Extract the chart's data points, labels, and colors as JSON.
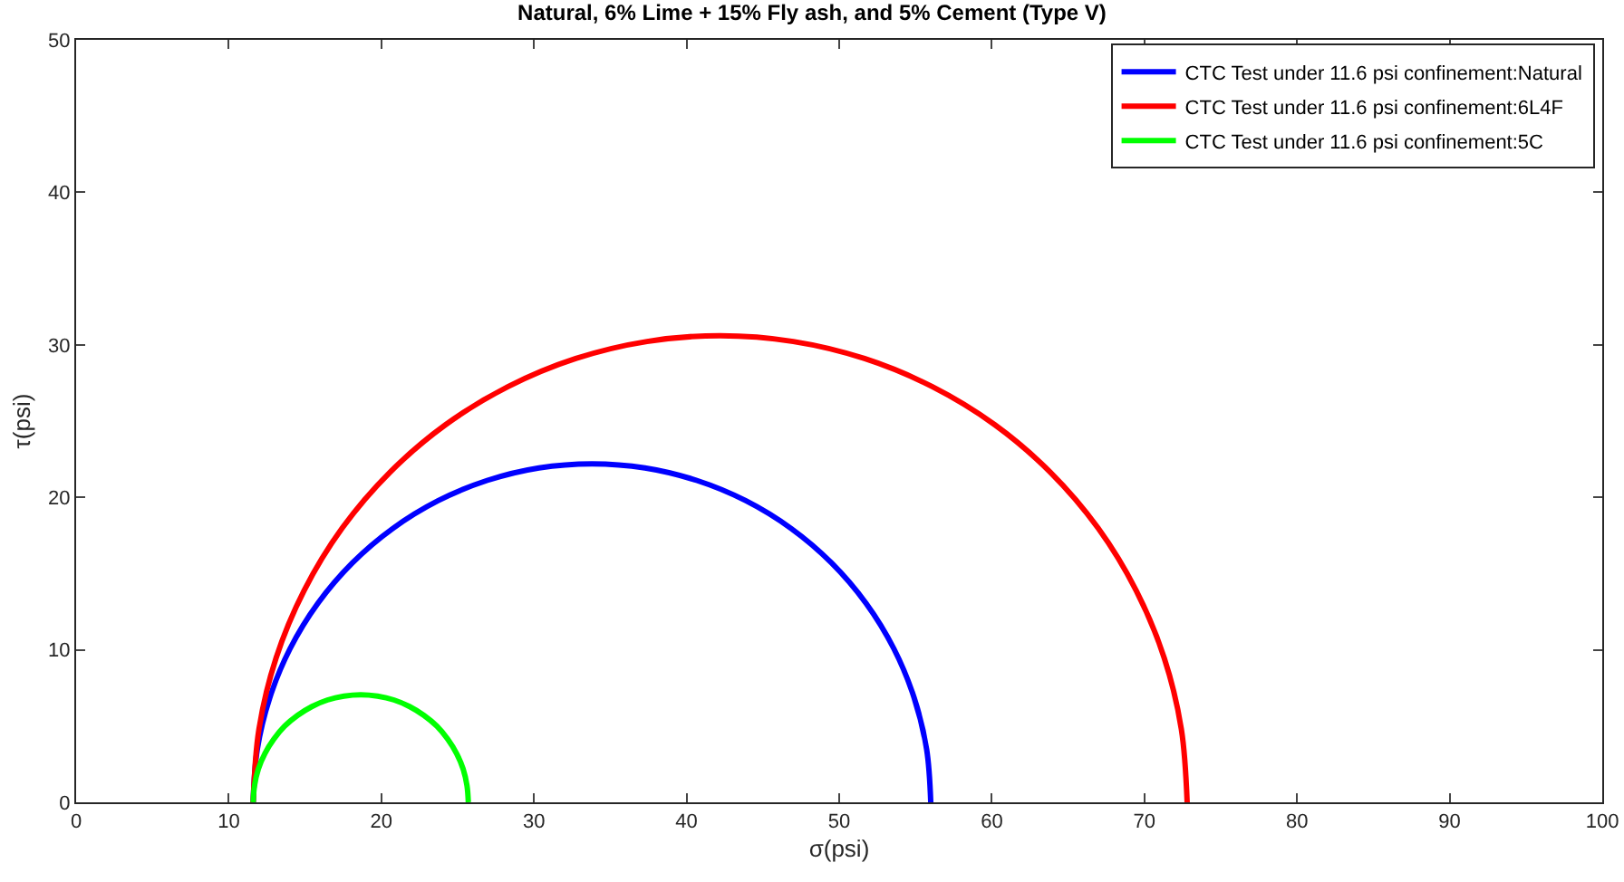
{
  "chart_data": {
    "type": "line",
    "title": "Natural, 6% Lime + 15% Fly ash, and 5% Cement (Type V)",
    "xlabel": "σ(psi)",
    "ylabel": "τ(psi)",
    "xlim": [
      0,
      100
    ],
    "xticks": [
      0,
      10,
      20,
      30,
      40,
      50,
      60,
      70,
      80,
      90,
      100
    ],
    "ylim": [
      0,
      50
    ],
    "yticks": [
      0,
      10,
      20,
      30,
      40,
      50
    ],
    "grid": false,
    "legend": "top right",
    "marker": "none",
    "line_style": "solid",
    "series": [
      {
        "name": "CTC Test under 11.6 psi confinement:Natural",
        "color": "#0000ff",
        "x": [
          11.6,
          11.87,
          12.69,
          14.02,
          15.84,
          18.1,
          20.75,
          23.72,
          26.94,
          30.33,
          33.8,
          37.27,
          40.66,
          43.88,
          46.85,
          49.5,
          51.76,
          53.58,
          54.91,
          55.73,
          56.0
        ],
        "values": [
          0,
          3.47,
          6.86,
          10.08,
          13.05,
          15.7,
          17.96,
          19.78,
          21.11,
          21.93,
          22.2,
          21.93,
          21.11,
          19.78,
          17.96,
          15.7,
          13.05,
          10.08,
          6.86,
          3.47,
          0
        ]
      },
      {
        "name": "CTC Test under 11.6 psi confinement:6L4F",
        "color": "#ff0000",
        "x": [
          11.6,
          11.98,
          13.1,
          14.94,
          17.44,
          20.56,
          24.21,
          28.31,
          32.74,
          37.41,
          42.2,
          46.99,
          51.66,
          56.09,
          60.19,
          63.84,
          66.96,
          69.46,
          71.3,
          72.42,
          72.8
        ],
        "values": [
          0,
          4.79,
          9.46,
          13.89,
          17.99,
          21.64,
          24.76,
          27.26,
          29.1,
          30.22,
          30.6,
          30.22,
          29.1,
          27.26,
          24.76,
          21.64,
          17.99,
          13.89,
          9.46,
          4.79,
          0
        ]
      },
      {
        "name": "CTC Test under 11.6 psi confinement:5C",
        "color": "#00ff00",
        "x": [
          11.6,
          11.69,
          11.94,
          12.37,
          12.95,
          13.66,
          14.51,
          15.45,
          16.47,
          17.55,
          18.65,
          19.75,
          20.83,
          21.85,
          22.79,
          23.64,
          24.35,
          24.93,
          25.36,
          25.61,
          25.7
        ],
        "values": [
          0,
          1.1,
          2.18,
          3.2,
          4.14,
          4.99,
          5.7,
          6.28,
          6.71,
          6.96,
          7.05,
          6.96,
          6.71,
          6.28,
          5.7,
          4.99,
          4.14,
          3.2,
          2.18,
          1.1,
          0
        ]
      }
    ]
  }
}
